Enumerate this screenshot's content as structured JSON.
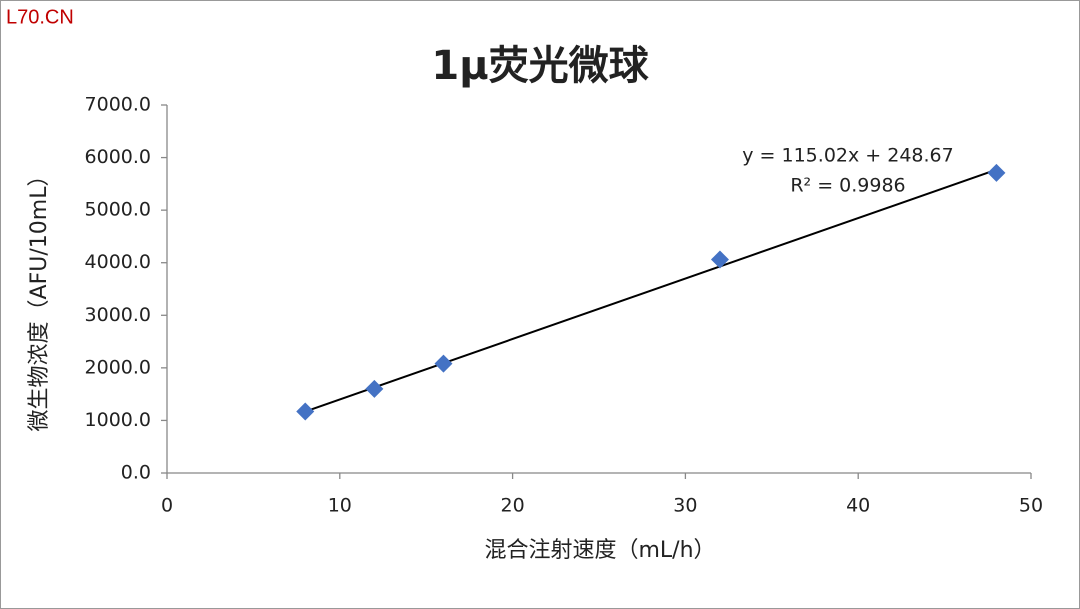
{
  "watermark": "L70.CN",
  "chart_data": {
    "type": "scatter",
    "title": "1μ荧光微球",
    "xlabel": "混合注射速度（mL/h）",
    "ylabel": "微生物浓度（AFU/10mL）",
    "series": [
      {
        "color": "#4472c4",
        "x": [
          8,
          12,
          16,
          32,
          48
        ],
        "values": [
          1170,
          1600,
          2080,
          4060,
          5710
        ]
      }
    ],
    "trendline": {
      "color": "#000000",
      "x": [
        8,
        48
      ],
      "values": [
        1168.8,
        5769.6
      ]
    },
    "annotations": [
      "y = 115.02x + 248.67",
      "R² = 0.9986"
    ],
    "xlim": [
      0,
      50
    ],
    "xticks": [
      0,
      10,
      20,
      30,
      40,
      50
    ],
    "ylim": [
      0,
      7000
    ],
    "yticks": [
      {
        "value": 0,
        "label": "0.0"
      },
      {
        "value": 1000,
        "label": "1000.0"
      },
      {
        "value": 2000,
        "label": "2000.0"
      },
      {
        "value": 3000,
        "label": "3000.0"
      },
      {
        "value": 4000,
        "label": "4000.0"
      },
      {
        "value": 5000,
        "label": "5000.0"
      },
      {
        "value": 6000,
        "label": "6000.0"
      },
      {
        "value": 7000,
        "label": "7000.0"
      }
    ],
    "grid": false
  }
}
